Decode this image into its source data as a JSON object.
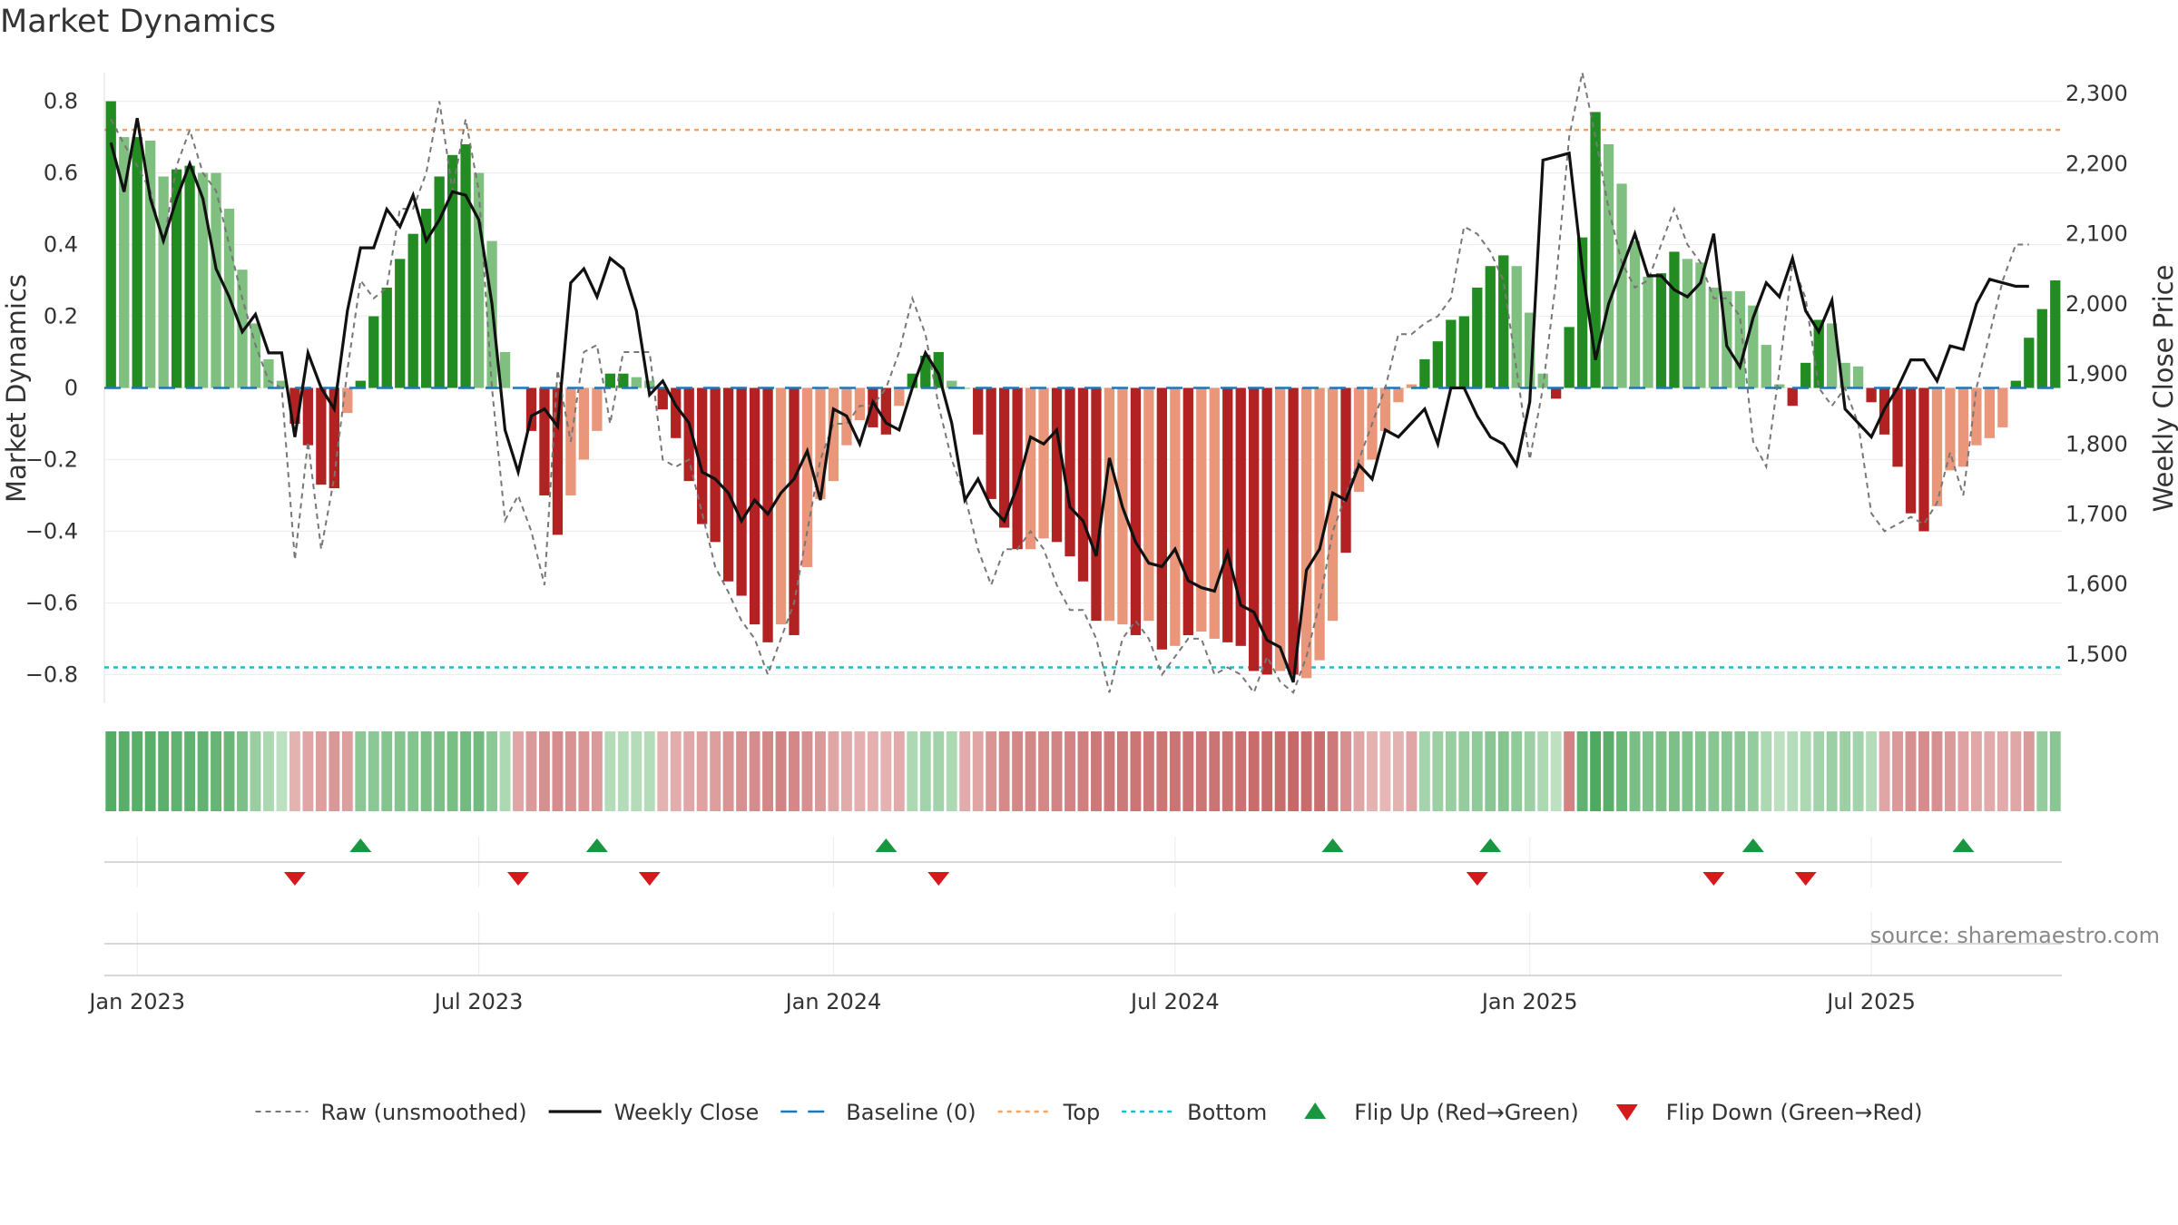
{
  "title": "Market Dynamics",
  "source": "source: sharemaestro.com",
  "chart_data": {
    "type": "bar",
    "y_left_label": "Market Dynamics",
    "y_right_label": "Weekly Close Price",
    "y_left_ticks": [
      "0.8",
      "0.6",
      "0.4",
      "0.2",
      "0",
      "−0.2",
      "−0.4",
      "−0.6",
      "−0.8"
    ],
    "y_left_tick_values": [
      0.8,
      0.6,
      0.4,
      0.2,
      0,
      -0.2,
      -0.4,
      -0.6,
      -0.8
    ],
    "y_right_ticks": [
      "2,300",
      "2,200",
      "2,100",
      "2,000",
      "1,900",
      "1,800",
      "1,700",
      "1,600",
      "1,500"
    ],
    "y_right_tick_values": [
      2300,
      2200,
      2100,
      2000,
      1900,
      1800,
      1700,
      1600,
      1500
    ],
    "x_ticks": [
      "Jan 2023",
      "Jul 2023",
      "Jan 2024",
      "Jul 2024",
      "Jan 2025",
      "Jul 2025"
    ],
    "x_tick_week_index": [
      2,
      28,
      55,
      81,
      108,
      134
    ],
    "ylim_left": [
      -0.88,
      0.88
    ],
    "ylim_right": [
      1430,
      2330
    ],
    "top_line": 0.72,
    "bottom_line": -0.78,
    "baseline": 0,
    "colors": {
      "strong_green": "#228b22",
      "light_green": "#7fbf7f",
      "strong_red": "#b22222",
      "light_red": "#e9967a",
      "raw": "#777777",
      "close": "#111111",
      "baseline": "#1f77b4",
      "top": "#f4a460",
      "bottom": "#17becf",
      "flip_up": "#1a9641",
      "flip_down": "#d7191c"
    },
    "mode_codes": "0 = strong green, 1 = light green, 2 = strong red, 3 = light red",
    "dynamics": [
      0.8,
      0.7,
      0.7,
      0.69,
      0.59,
      0.61,
      0.62,
      0.6,
      0.6,
      0.5,
      0.33,
      0.18,
      0.08,
      0.02,
      -0.1,
      -0.16,
      -0.27,
      -0.28,
      -0.07,
      0.02,
      0.2,
      0.28,
      0.36,
      0.43,
      0.5,
      0.59,
      0.65,
      0.68,
      0.6,
      0.41,
      0.1,
      0.0,
      -0.12,
      -0.3,
      -0.41,
      -0.3,
      -0.2,
      -0.12,
      0.04,
      0.04,
      0.03,
      0.02,
      -0.06,
      -0.14,
      -0.26,
      -0.38,
      -0.43,
      -0.54,
      -0.58,
      -0.66,
      -0.71,
      -0.66,
      -0.69,
      -0.5,
      -0.31,
      -0.26,
      -0.16,
      -0.09,
      -0.11,
      -0.13,
      -0.05,
      0.04,
      0.09,
      0.1,
      0.02,
      0.0,
      -0.13,
      -0.31,
      -0.39,
      -0.45,
      -0.45,
      -0.42,
      -0.43,
      -0.47,
      -0.54,
      -0.65,
      -0.65,
      -0.66,
      -0.69,
      -0.65,
      -0.73,
      -0.72,
      -0.69,
      -0.68,
      -0.7,
      -0.71,
      -0.72,
      -0.79,
      -0.8,
      -0.79,
      -0.8,
      -0.81,
      -0.76,
      -0.65,
      -0.46,
      -0.29,
      -0.2,
      -0.12,
      -0.04,
      0.01,
      0.08,
      0.13,
      0.19,
      0.2,
      0.28,
      0.34,
      0.37,
      0.34,
      0.21,
      0.04,
      -0.03,
      0.17,
      0.42,
      0.77,
      0.68,
      0.57,
      0.41,
      0.31,
      0.32,
      0.38,
      0.36,
      0.35,
      0.28,
      0.27,
      0.27,
      0.23,
      0.12,
      0.01,
      -0.05,
      0.07,
      0.19,
      0.18,
      0.07,
      0.06,
      -0.04,
      -0.13,
      -0.22,
      -0.35,
      -0.4,
      -0.33,
      -0.23,
      -0.22,
      -0.16,
      -0.14,
      -0.11,
      0.02,
      0.14,
      0.22,
      0.3
    ],
    "bar_mode": [
      0,
      1,
      0,
      1,
      1,
      0,
      0,
      1,
      1,
      1,
      1,
      1,
      1,
      1,
      2,
      2,
      2,
      2,
      3,
      0,
      0,
      0,
      0,
      0,
      0,
      0,
      0,
      0,
      1,
      1,
      1,
      1,
      2,
      2,
      2,
      3,
      3,
      3,
      0,
      0,
      1,
      1,
      2,
      2,
      2,
      2,
      2,
      2,
      2,
      2,
      2,
      3,
      2,
      3,
      3,
      3,
      3,
      3,
      2,
      2,
      3,
      0,
      0,
      0,
      1,
      1,
      2,
      2,
      2,
      2,
      3,
      3,
      2,
      2,
      2,
      2,
      3,
      3,
      2,
      3,
      2,
      3,
      2,
      3,
      3,
      2,
      2,
      2,
      2,
      3,
      2,
      3,
      3,
      3,
      2,
      3,
      3,
      3,
      3,
      3,
      0,
      0,
      0,
      0,
      0,
      0,
      0,
      1,
      1,
      1,
      2,
      0,
      0,
      0,
      1,
      1,
      1,
      1,
      0,
      0,
      1,
      1,
      1,
      1,
      1,
      1,
      1,
      1,
      2,
      0,
      0,
      1,
      1,
      1,
      2,
      2,
      2,
      2,
      2,
      3,
      3,
      3,
      3,
      3,
      3,
      0,
      0,
      0,
      0,
      0
    ],
    "raw_signal": [
      0.75,
      0.68,
      0.62,
      0.55,
      0.4,
      0.62,
      0.72,
      0.6,
      0.55,
      0.4,
      0.25,
      0.12,
      0.02,
      0.0,
      -0.48,
      -0.15,
      -0.45,
      -0.25,
      0.05,
      0.3,
      0.25,
      0.28,
      0.5,
      0.5,
      0.6,
      0.8,
      0.55,
      0.75,
      0.55,
      0.0,
      -0.37,
      -0.3,
      -0.4,
      -0.55,
      0.05,
      -0.15,
      0.1,
      0.12,
      -0.1,
      0.1,
      0.1,
      0.1,
      -0.2,
      -0.22,
      -0.2,
      -0.35,
      -0.5,
      -0.57,
      -0.65,
      -0.7,
      -0.8,
      -0.7,
      -0.6,
      -0.4,
      -0.2,
      -0.1,
      -0.1,
      -0.05,
      -0.05,
      0.0,
      0.1,
      0.25,
      0.15,
      -0.05,
      -0.2,
      -0.3,
      -0.45,
      -0.55,
      -0.45,
      -0.45,
      -0.4,
      -0.45,
      -0.55,
      -0.62,
      -0.62,
      -0.7,
      -0.85,
      -0.7,
      -0.65,
      -0.7,
      -0.8,
      -0.75,
      -0.7,
      -0.7,
      -0.8,
      -0.78,
      -0.8,
      -0.85,
      -0.75,
      -0.82,
      -0.85,
      -0.75,
      -0.6,
      -0.4,
      -0.3,
      -0.2,
      -0.1,
      0.0,
      0.15,
      0.15,
      0.18,
      0.2,
      0.25,
      0.45,
      0.43,
      0.38,
      0.3,
      0.05,
      -0.2,
      0.0,
      0.3,
      0.7,
      0.88,
      0.7,
      0.5,
      0.35,
      0.28,
      0.3,
      0.4,
      0.5,
      0.4,
      0.35,
      0.25,
      0.25,
      0.2,
      -0.15,
      -0.22,
      0.05,
      0.35,
      0.25,
      0.0,
      -0.05,
      0.0,
      -0.1,
      -0.35,
      -0.4,
      -0.38,
      -0.36,
      -0.38,
      -0.32,
      -0.18,
      -0.3,
      0.0,
      0.15,
      0.3,
      0.4,
      0.4
    ],
    "weekly_close": [
      2230,
      2160,
      2265,
      2150,
      2090,
      2150,
      2200,
      2150,
      2050,
      2010,
      1960,
      1985,
      1930,
      1930,
      1810,
      1930,
      1880,
      1850,
      1990,
      2080,
      2080,
      2135,
      2110,
      2155,
      2090,
      2120,
      2160,
      2155,
      2120,
      2000,
      1820,
      1760,
      1840,
      1850,
      1825,
      2030,
      2050,
      2010,
      2065,
      2050,
      1990,
      1870,
      1890,
      1855,
      1830,
      1760,
      1750,
      1730,
      1690,
      1720,
      1700,
      1730,
      1750,
      1790,
      1720,
      1850,
      1840,
      1800,
      1860,
      1830,
      1820,
      1880,
      1930,
      1900,
      1830,
      1720,
      1750,
      1710,
      1690,
      1740,
      1810,
      1800,
      1820,
      1710,
      1690,
      1640,
      1780,
      1710,
      1660,
      1630,
      1625,
      1650,
      1605,
      1595,
      1590,
      1645,
      1570,
      1560,
      1520,
      1510,
      1460,
      1620,
      1650,
      1730,
      1720,
      1770,
      1750,
      1820,
      1810,
      1830,
      1850,
      1800,
      1880,
      1880,
      1840,
      1810,
      1800,
      1770,
      1860,
      2205,
      2210,
      2215,
      2050,
      1920,
      2000,
      2050,
      2100,
      2040,
      2040,
      2020,
      2010,
      2030,
      2100,
      1940,
      1910,
      1980,
      2030,
      2010,
      2065,
      1990,
      1960,
      2005,
      1850,
      1830,
      1810,
      1850,
      1880,
      1920,
      1920,
      1890,
      1940,
      1935,
      2000,
      2035,
      2030,
      2025,
      2025
    ],
    "heat_strip": [
      0.85,
      0.82,
      0.82,
      0.82,
      0.8,
      0.78,
      0.78,
      0.76,
      0.74,
      0.72,
      0.6,
      0.42,
      0.3,
      0.2,
      0.2,
      0.3,
      0.35,
      0.4,
      0.35,
      0.5,
      0.5,
      0.55,
      0.55,
      0.55,
      0.6,
      0.6,
      0.62,
      0.66,
      0.66,
      0.5,
      0.3,
      0.3,
      0.38,
      0.45,
      0.48,
      0.44,
      0.42,
      0.38,
      0.25,
      0.25,
      0.25,
      0.25,
      0.2,
      0.24,
      0.28,
      0.32,
      0.35,
      0.42,
      0.45,
      0.48,
      0.52,
      0.55,
      0.52,
      0.45,
      0.38,
      0.3,
      0.25,
      0.22,
      0.22,
      0.2,
      0.25,
      0.3,
      0.36,
      0.36,
      0.3,
      0.25,
      0.3,
      0.42,
      0.5,
      0.52,
      0.52,
      0.52,
      0.55,
      0.55,
      0.58,
      0.62,
      0.62,
      0.62,
      0.65,
      0.62,
      0.65,
      0.66,
      0.66,
      0.65,
      0.66,
      0.66,
      0.68,
      0.72,
      0.72,
      0.72,
      0.74,
      0.72,
      0.7,
      0.62,
      0.45,
      0.3,
      0.2,
      0.16,
      0.2,
      0.3,
      0.35,
      0.4,
      0.42,
      0.45,
      0.48,
      0.52,
      0.55,
      0.48,
      0.4,
      0.3,
      0.2,
      0.55,
      0.78,
      0.88,
      0.82,
      0.72,
      0.62,
      0.58,
      0.6,
      0.6,
      0.58,
      0.55,
      0.52,
      0.52,
      0.5,
      0.45,
      0.3,
      0.2,
      0.24,
      0.3,
      0.36,
      0.4,
      0.4,
      0.36,
      0.25,
      0.3,
      0.38,
      0.45,
      0.48,
      0.45,
      0.38,
      0.32,
      0.28,
      0.26,
      0.25,
      0.28,
      0.38,
      0.45,
      0.52
    ],
    "heat_strip_color": [
      "g",
      "g",
      "g",
      "g",
      "g",
      "g",
      "g",
      "g",
      "g",
      "g",
      "g",
      "g",
      "g",
      "g",
      "r",
      "r",
      "r",
      "r",
      "r",
      "g",
      "g",
      "g",
      "g",
      "g",
      "g",
      "g",
      "g",
      "g",
      "g",
      "g",
      "g",
      "r",
      "r",
      "r",
      "r",
      "r",
      "r",
      "r",
      "g",
      "g",
      "g",
      "g",
      "r",
      "r",
      "r",
      "r",
      "r",
      "r",
      "r",
      "r",
      "r",
      "r",
      "r",
      "r",
      "r",
      "r",
      "r",
      "r",
      "r",
      "r",
      "r",
      "g",
      "g",
      "g",
      "g",
      "r",
      "r",
      "r",
      "r",
      "r",
      "r",
      "r",
      "r",
      "r",
      "r",
      "r",
      "r",
      "r",
      "r",
      "r",
      "r",
      "r",
      "r",
      "r",
      "r",
      "r",
      "r",
      "r",
      "r",
      "r",
      "r",
      "r",
      "r",
      "r",
      "r",
      "r",
      "r",
      "r",
      "r",
      "r",
      "g",
      "g",
      "g",
      "g",
      "g",
      "g",
      "g",
      "g",
      "g",
      "g",
      "g",
      "r",
      "g",
      "g",
      "g",
      "g",
      "g",
      "g",
      "g",
      "g",
      "g",
      "g",
      "g",
      "g",
      "g",
      "g",
      "g",
      "g",
      "g",
      "g",
      "g",
      "g",
      "g",
      "g",
      "g",
      "r",
      "r",
      "r",
      "r",
      "r",
      "r",
      "r",
      "r",
      "r",
      "r",
      "r",
      "r",
      "g",
      "g",
      "g",
      "g",
      "g"
    ],
    "flip_up_weeks": [
      19,
      37,
      59,
      93,
      105,
      125,
      141
    ],
    "flip_down_weeks": [
      14,
      31,
      41,
      63,
      104,
      122,
      129
    ],
    "legend": [
      {
        "label": "Raw (unsmoothed)",
        "style": "raw"
      },
      {
        "label": "Weekly Close",
        "style": "close"
      },
      {
        "label": "Baseline (0)",
        "style": "baseline"
      },
      {
        "label": "Top",
        "style": "top"
      },
      {
        "label": "Bottom",
        "style": "bottom"
      },
      {
        "label": "Flip Up (Red→Green)",
        "style": "flip_up"
      },
      {
        "label": "Flip Down (Green→Red)",
        "style": "flip_down"
      }
    ]
  }
}
